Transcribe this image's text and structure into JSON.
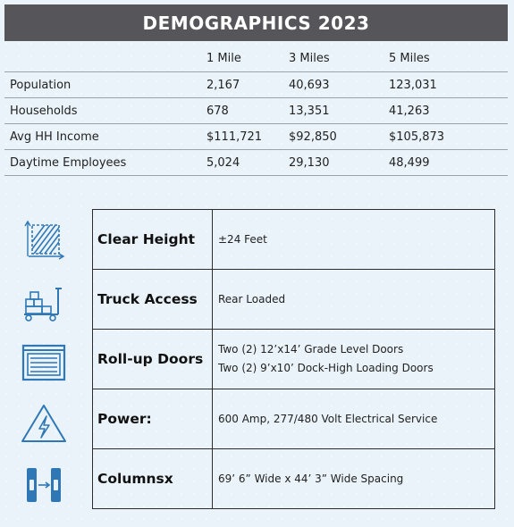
{
  "title": "DEMOGRAPHICS 2023",
  "demographics": {
    "columns": [
      "",
      "1 Mile",
      "3 Miles",
      "5 Miles"
    ],
    "rows": [
      {
        "label": "Population",
        "values": [
          "2,167",
          "40,693",
          "123,031"
        ]
      },
      {
        "label": "Households",
        "values": [
          "678",
          "13,351",
          "41,263"
        ]
      },
      {
        "label": "Avg HH Income",
        "values": [
          "$111,721",
          "$92,850",
          "$105,873"
        ]
      },
      {
        "label": "Daytime Employees",
        "values": [
          "5,024",
          "29,130",
          "48,499"
        ]
      }
    ]
  },
  "features": [
    {
      "icon": "clear-height-icon",
      "label": "Clear Height",
      "lines": [
        "±24 Feet"
      ]
    },
    {
      "icon": "truck-access-icon",
      "label": "Truck Access",
      "lines": [
        "Rear Loaded"
      ]
    },
    {
      "icon": "roll-up-door-icon",
      "label": "Roll-up Doors",
      "lines": [
        "Two (2) 12’x14’ Grade Level Doors",
        "Two (2) 9’x10’ Dock-High Loading Doors"
      ]
    },
    {
      "icon": "power-icon",
      "label": "Power:",
      "lines": [
        "600 Amp, 277/480 Volt Electrical Service"
      ]
    },
    {
      "icon": "columns-icon",
      "label": "Columnsx",
      "lines": [
        "69’ 6” Wide x 44’ 3” Wide Spacing"
      ]
    }
  ],
  "colors": {
    "background": "#e9f3f9",
    "title_bar": "#55555a",
    "icon_blue": "#2f78b5"
  }
}
